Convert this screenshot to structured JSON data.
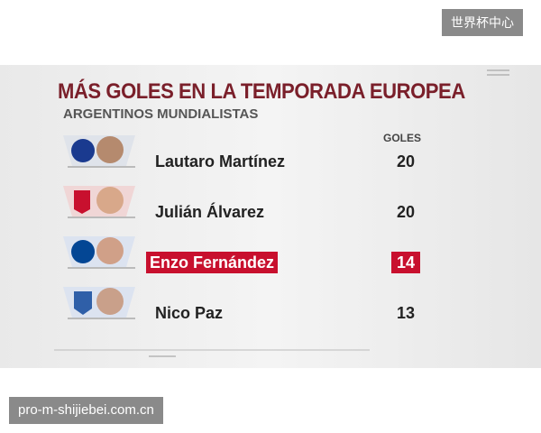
{
  "watermark_top": "世界杯中心",
  "watermark_bottom": "pro-m-shijiebei.com.cn",
  "header": {
    "title": "MÁS GOLES EN LA TEMPORADA EUROPEA",
    "subtitle": "ARGENTINOS MUNDIALISTAS"
  },
  "table": {
    "columns": [
      "GOLES"
    ],
    "rows": [
      [
        "Lautaro Martínez",
        "20"
      ],
      [
        "Julián Álvarez",
        "20"
      ],
      [
        "Enzo Fernández",
        "14"
      ],
      [
        "Nico Paz",
        "13"
      ]
    ]
  }
}
